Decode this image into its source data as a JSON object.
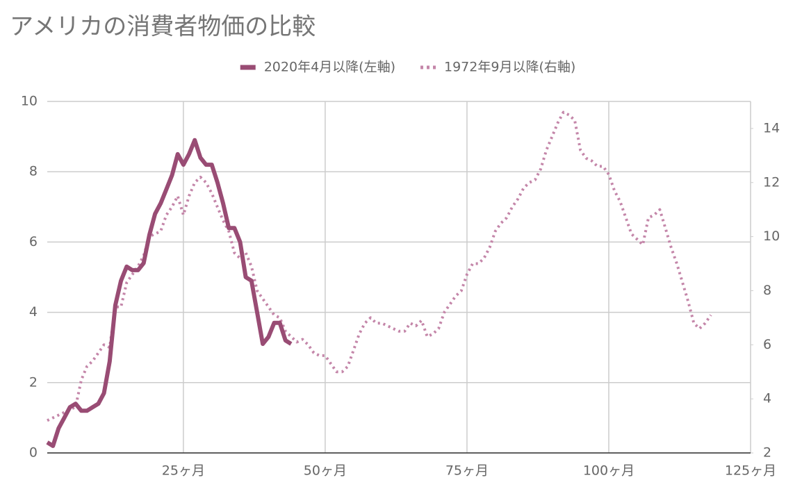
{
  "chart_data": {
    "type": "line",
    "title": "アメリカの消費者物価の比較",
    "x": [
      1,
      2,
      3,
      4,
      5,
      6,
      7,
      8,
      9,
      10,
      11,
      12,
      13,
      14,
      15,
      16,
      17,
      18,
      19,
      20,
      21,
      22,
      23,
      24,
      25,
      26,
      27,
      28,
      29,
      30,
      31,
      32,
      33,
      34,
      35,
      36,
      37,
      38,
      39,
      40,
      41,
      42,
      43,
      44,
      45,
      46,
      47,
      48,
      49,
      50,
      51,
      52,
      53,
      54,
      55,
      56,
      57,
      58,
      59,
      60,
      61,
      62,
      63,
      64,
      65,
      66,
      67,
      68,
      69,
      70,
      71,
      72,
      73,
      74,
      75,
      76,
      77,
      78,
      79,
      80,
      81,
      82,
      83,
      84,
      85,
      86,
      87,
      88,
      89,
      90,
      91,
      92,
      93,
      94,
      95,
      96,
      97,
      98,
      99,
      100,
      101,
      102,
      103,
      104,
      105,
      106,
      107,
      108,
      109,
      110,
      111,
      112,
      113,
      114,
      115,
      116,
      117,
      118
    ],
    "series": [
      {
        "name": "2020年4月以降(左軸)",
        "color": "#994c74",
        "style": "solid",
        "axis": "y",
        "values": [
          0.3,
          0.2,
          0.7,
          1.0,
          1.3,
          1.4,
          1.2,
          1.2,
          1.3,
          1.4,
          1.7,
          2.6,
          4.2,
          4.9,
          5.3,
          5.2,
          5.2,
          5.4,
          6.2,
          6.8,
          7.1,
          7.5,
          7.9,
          8.5,
          8.2,
          8.5,
          8.9,
          8.4,
          8.2,
          8.2,
          7.7,
          7.1,
          6.4,
          6.4,
          6.0,
          5.0,
          4.9,
          4.0,
          3.1,
          3.3,
          3.7,
          3.7,
          3.2,
          3.1,
          null,
          null,
          null,
          null,
          null,
          null,
          null,
          null,
          null,
          null,
          null,
          null,
          null,
          null,
          null,
          null,
          null,
          null,
          null,
          null,
          null,
          null,
          null,
          null,
          null,
          null,
          null,
          null,
          null,
          null,
          null,
          null,
          null,
          null,
          null,
          null,
          null,
          null,
          null,
          null,
          null,
          null,
          null,
          null,
          null,
          null,
          null,
          null,
          null,
          null,
          null,
          null,
          null,
          null,
          null,
          null,
          null,
          null,
          null,
          null,
          null,
          null,
          null,
          null,
          null,
          null,
          null,
          null,
          null,
          null,
          null,
          null,
          null,
          null
        ]
      },
      {
        "name": "1972年9月以降(右軸)",
        "color": "#c486a9",
        "style": "dotted",
        "axis": "y2",
        "values": [
          3.2,
          3.3,
          3.4,
          3.5,
          3.6,
          3.7,
          4.7,
          5.2,
          5.4,
          5.7,
          6.0,
          5.9,
          7.4,
          7.4,
          8.3,
          8.6,
          8.9,
          9.3,
          10.0,
          10.1,
          10.2,
          10.8,
          11.1,
          11.5,
          10.8,
          11.5,
          12.0,
          12.2,
          12.0,
          11.6,
          11.1,
          10.6,
          10.2,
          9.4,
          9.2,
          9.4,
          8.9,
          8.0,
          7.7,
          7.4,
          7.1,
          7.0,
          6.5,
          6.3,
          6.1,
          6.2,
          6.0,
          5.7,
          5.6,
          5.6,
          5.3,
          5.0,
          5.0,
          5.2,
          5.8,
          6.4,
          6.8,
          7.0,
          6.8,
          6.8,
          6.7,
          6.6,
          6.5,
          6.5,
          6.8,
          6.7,
          6.9,
          6.3,
          6.4,
          6.6,
          7.2,
          7.5,
          7.8,
          8.0,
          8.6,
          9.0,
          9.0,
          9.2,
          9.6,
          10.2,
          10.5,
          10.7,
          11.1,
          11.4,
          11.8,
          12.0,
          12.1,
          12.5,
          13.2,
          13.7,
          14.2,
          14.6,
          14.5,
          14.3,
          13.2,
          12.9,
          12.8,
          12.6,
          12.6,
          12.3,
          11.7,
          11.3,
          10.7,
          10.1,
          9.9,
          9.7,
          10.7,
          10.8,
          11.0,
          10.3,
          9.6,
          9.0,
          8.3,
          7.6,
          6.8,
          6.6,
          6.8,
          7.1
        ]
      }
    ],
    "xlim": [
      1,
      125
    ],
    "xticks": [
      {
        "value": 25,
        "label": "25ヶ月"
      },
      {
        "value": 50,
        "label": "50ヶ月"
      },
      {
        "value": 75,
        "label": "75ヶ月"
      },
      {
        "value": 100,
        "label": "100ヶ月"
      },
      {
        "value": 125,
        "label": "125ヶ月"
      }
    ],
    "ylim": [
      0,
      10
    ],
    "yticks": [
      0,
      2,
      4,
      6,
      8,
      10
    ],
    "y2lim": [
      2,
      15
    ],
    "y2ticks": [
      2,
      4,
      6,
      8,
      10,
      12,
      14
    ],
    "grid": true,
    "legend": "top"
  }
}
